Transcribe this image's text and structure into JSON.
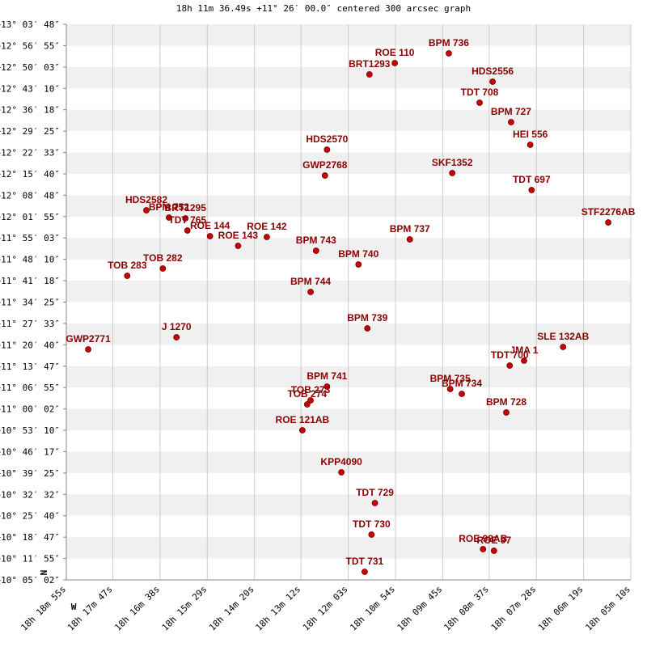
{
  "chart_data": {
    "type": "scatter",
    "title": "18h 11m 36.49s +11° 26′ 00.0″ centered 300 arcsec graph",
    "compass": {
      "north": "N",
      "west": "W"
    },
    "color": "#cc0000",
    "label_color": "#8b0000",
    "grid": true,
    "xlim": [
      65935,
      65110
    ],
    "ylim": [
      36302,
      47028
    ],
    "xticks": [
      {
        "value": 65935,
        "label": "18h 18m 55s"
      },
      {
        "value": 65867,
        "label": "18h 17m 47s"
      },
      {
        "value": 65798,
        "label": "18h 16m 38s"
      },
      {
        "value": 65729,
        "label": "18h 15m 29s"
      },
      {
        "value": 65660,
        "label": "18h 14m 20s"
      },
      {
        "value": 65592,
        "label": "18h 13m 12s"
      },
      {
        "value": 65523,
        "label": "18h 12m 03s"
      },
      {
        "value": 65454,
        "label": "18h 10m 54s"
      },
      {
        "value": 65385,
        "label": "18h 09m 45s"
      },
      {
        "value": 65317,
        "label": "18h 08m 37s"
      },
      {
        "value": 65248,
        "label": "18h 07m 28s"
      },
      {
        "value": 65179,
        "label": "18h 06m 19s"
      },
      {
        "value": 65110,
        "label": "18h 05m 10s"
      }
    ],
    "yticks": [
      {
        "value": 47028,
        "label": "+13° 03′ 48″"
      },
      {
        "value": 46615,
        "label": "+12° 56′ 55″"
      },
      {
        "value": 46203,
        "label": "+12° 50′ 03″"
      },
      {
        "value": 45790,
        "label": "+12° 43′ 10″"
      },
      {
        "value": 45378,
        "label": "+12° 36′ 18″"
      },
      {
        "value": 44965,
        "label": "+12° 29′ 25″"
      },
      {
        "value": 44553,
        "label": "+12° 22′ 33″"
      },
      {
        "value": 44140,
        "label": "+12° 15′ 40″"
      },
      {
        "value": 43728,
        "label": "+12° 08′ 48″"
      },
      {
        "value": 43315,
        "label": "+12° 01′ 55″"
      },
      {
        "value": 42903,
        "label": "+11° 55′ 03″"
      },
      {
        "value": 42490,
        "label": "+11° 48′ 10″"
      },
      {
        "value": 42078,
        "label": "+11° 41′ 18″"
      },
      {
        "value": 41665,
        "label": "+11° 34′ 25″"
      },
      {
        "value": 41253,
        "label": "+11° 27′ 33″"
      },
      {
        "value": 40840,
        "label": "+11° 20′ 40″"
      },
      {
        "value": 40427,
        "label": "+11° 13′ 47″"
      },
      {
        "value": 40015,
        "label": "+11° 06′ 55″"
      },
      {
        "value": 39602,
        "label": "+11° 00′ 02″"
      },
      {
        "value": 39190,
        "label": "+10° 53′ 10″"
      },
      {
        "value": 38777,
        "label": "+10° 46′ 17″"
      },
      {
        "value": 38365,
        "label": "+10° 39′ 25″"
      },
      {
        "value": 37952,
        "label": "+10° 32′ 32″"
      },
      {
        "value": 37540,
        "label": "+10° 25′ 40″"
      },
      {
        "value": 37127,
        "label": "+10° 18′ 47″"
      },
      {
        "value": 36715,
        "label": "+10° 11′ 55″"
      },
      {
        "value": 36302,
        "label": "+10° 05′ 02″"
      }
    ],
    "labels": [
      "BPM 736",
      "ROE 110",
      "BRT1293",
      "HDS2556",
      "TDT 708",
      "BPM 727",
      "HEI 556",
      "HDS2570",
      "GWP2768",
      "SKF1352",
      "TDT 697",
      "HDS2582",
      "BPM 752",
      "BRT1295",
      "TDT 765",
      "ROE 144",
      "ROE 143",
      "ROE 142",
      "STF2276AB",
      "BPM 737",
      "BPM 743",
      "BPM 740",
      "TOB 282",
      "TOB 283",
      "BPM 744",
      "BPM 739",
      "J 1270",
      "GWP2771",
      "SLE 132AB",
      "JMA 1",
      "TDT 700",
      "BPM 741",
      "TOB 273",
      "TOB 274",
      "BPM 735",
      "BPM 734",
      "BPM 728",
      "ROE 121AB",
      "KPP4090",
      "TDT 729",
      "TDT 730",
      "ROE 98AB",
      "ROE 97",
      "TDT 731"
    ],
    "x": [
      65376,
      65455,
      65492,
      65312,
      65331,
      65285,
      65257,
      65554,
      65557,
      65371,
      65255,
      65818,
      65785,
      65761,
      65758,
      65725,
      65684,
      65642,
      65143,
      65433,
      65570,
      65508,
      65794,
      65846,
      65578,
      65495,
      65774,
      65903,
      65209,
      65266,
      65287,
      65554,
      65578,
      65583,
      65374,
      65357,
      65292,
      65590,
      65533,
      65484,
      65489,
      65326,
      65310,
      65499
    ],
    "values": [
      46466,
      46279,
      46060,
      45919,
      45514,
      45139,
      44702,
      44608,
      44108,
      44155,
      43827,
      43437,
      43296,
      43281,
      43047,
      42937,
      42750,
      42922,
      43203,
      42875,
      42656,
      42391,
      42313,
      42172,
      41860,
      41158,
      40986,
      40752,
      40798,
      40533,
      40439,
      40033,
      39768,
      39690,
      39987,
      39893,
      39534,
      39190,
      38378,
      37785,
      37176,
      36895,
      36864,
      36458
    ]
  }
}
